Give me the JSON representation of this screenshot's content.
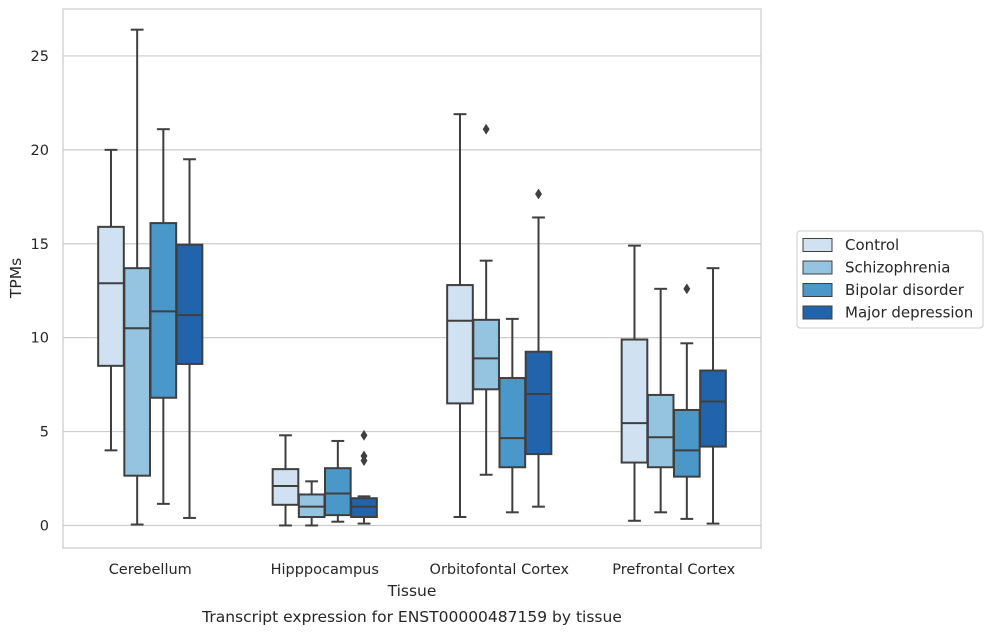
{
  "chart_data": {
    "type": "boxplot",
    "title": "Transcript expression for ENST00000487159 by tissue",
    "xlabel": "Tissue",
    "ylabel": "TPMs",
    "ylim": [
      -1.2,
      27.5
    ],
    "yticks": [
      0,
      5,
      10,
      15,
      20,
      25
    ],
    "grid": true,
    "legend_position": "right",
    "categories": [
      "Cerebellum",
      "Hipppocampus",
      "Orbitofontal Cortex",
      "Prefrontal Cortex"
    ],
    "series": [
      {
        "name": "Control",
        "color": "#d0e1f2",
        "boxes": [
          {
            "whislo": 4.0,
            "q1": 8.5,
            "med": 12.9,
            "q3": 15.9,
            "whishi": 20.0,
            "fliers": []
          },
          {
            "whislo": 0.0,
            "q1": 1.1,
            "med": 2.1,
            "q3": 3.0,
            "whishi": 4.8,
            "fliers": []
          },
          {
            "whislo": 0.45,
            "q1": 6.5,
            "med": 10.9,
            "q3": 12.8,
            "whishi": 21.9,
            "fliers": []
          },
          {
            "whislo": 0.25,
            "q1": 3.35,
            "med": 5.45,
            "q3": 9.9,
            "whishi": 14.9,
            "fliers": []
          }
        ]
      },
      {
        "name": "Schizophrenia",
        "color": "#94c4df",
        "boxes": [
          {
            "whislo": 0.05,
            "q1": 2.65,
            "med": 10.5,
            "q3": 13.7,
            "whishi": 26.4,
            "fliers": []
          },
          {
            "whislo": 0.0,
            "q1": 0.45,
            "med": 1.0,
            "q3": 1.65,
            "whishi": 2.35,
            "fliers": []
          },
          {
            "whislo": 2.7,
            "q1": 7.25,
            "med": 8.9,
            "q3": 10.95,
            "whishi": 14.1,
            "fliers": [
              21.1
            ]
          },
          {
            "whislo": 0.7,
            "q1": 3.1,
            "med": 4.7,
            "q3": 6.95,
            "whishi": 12.6,
            "fliers": []
          }
        ]
      },
      {
        "name": "Bipolar disorder",
        "color": "#4a98c9",
        "boxes": [
          {
            "whislo": 1.15,
            "q1": 6.8,
            "med": 11.4,
            "q3": 16.1,
            "whishi": 21.1,
            "fliers": []
          },
          {
            "whislo": 0.2,
            "q1": 0.55,
            "med": 1.7,
            "q3": 3.05,
            "whishi": 4.5,
            "fliers": []
          },
          {
            "whislo": 0.7,
            "q1": 3.1,
            "med": 4.65,
            "q3": 7.85,
            "whishi": 11.0,
            "fliers": []
          },
          {
            "whislo": 0.35,
            "q1": 2.6,
            "med": 4.0,
            "q3": 6.15,
            "whishi": 9.7,
            "fliers": [
              12.6
            ]
          }
        ]
      },
      {
        "name": "Major depression",
        "color": "#2264ab",
        "boxes": [
          {
            "whislo": 0.4,
            "q1": 8.6,
            "med": 11.2,
            "q3": 14.95,
            "whishi": 19.5,
            "fliers": []
          },
          {
            "whislo": 0.1,
            "q1": 0.45,
            "med": 1.0,
            "q3": 1.45,
            "whishi": 1.55,
            "fliers": [
              4.8,
              3.7,
              3.45
            ]
          },
          {
            "whislo": 1.0,
            "q1": 3.8,
            "med": 7.0,
            "q3": 9.25,
            "whishi": 16.4,
            "fliers": [
              17.65
            ]
          },
          {
            "whislo": 0.1,
            "q1": 4.2,
            "med": 6.6,
            "q3": 8.25,
            "whishi": 13.7,
            "fliers": []
          }
        ]
      }
    ]
  }
}
